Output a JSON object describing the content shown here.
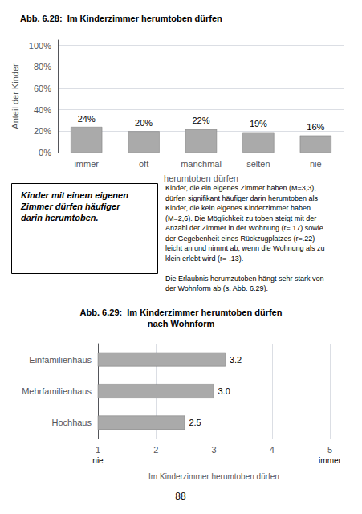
{
  "chart_data": [
    {
      "type": "bar",
      "title": "Abb. 6.28:  Im Kinderzimmer herumtoben dürfen",
      "categories": [
        "immer",
        "oft",
        "manchmal",
        "selten",
        "nie"
      ],
      "values": [
        24,
        20,
        22,
        19,
        16
      ],
      "value_labels": [
        "24%",
        "20%",
        "22%",
        "19%",
        "16%"
      ],
      "data_labels": true,
      "xlabel": "herumtoben dürfen",
      "ylabel": "Anteil der Kinder",
      "ylim": [
        0,
        105
      ],
      "yticks": [
        {
          "value": 0,
          "label": "0%"
        },
        {
          "value": 20,
          "label": "20%"
        },
        {
          "value": 40,
          "label": "40%"
        },
        {
          "value": 60,
          "label": "60%"
        },
        {
          "value": 80,
          "label": "80%"
        },
        {
          "value": 100,
          "label": "100%"
        }
      ],
      "color": "#aaaaaa",
      "grid": true,
      "annotations": [
        {
          "text": "Kinder mit einem eigenen\nZimmer dürfen häufiger\ndarin herumtoben."
        },
        {
          "text": "Kinder, die ein eigenes Zimmer haben (M=3,3),\ndürfen signifikant häufiger darin herumtoben als\nKinder, die kein eigenes Kinderzimmer haben\n(M=2,6). Die Möglichkeit zu toben steigt mit der\nAnzahl der Zimmer in der Wohnung (r=.17) sowie\nder Gegebenheit eines Rückzugplatzes (r=.22)\nleicht an und nimmt ab, wenn die Wohnung als zu\nklein erlebt wird (r=-.13).\n\nDie Erlaubnis herumzutoben hängt sehr stark von\nder Wohnform ab (s. Abb. 6.29)."
        }
      ]
    },
    {
      "type": "bar",
      "orientation": "horizontal",
      "title": "Abb. 6.29:  Im Kinderzimmer herumtoben dürfen",
      "subtitle": "nach Wohnform",
      "categories": [
        "Einfamilienhaus",
        "Mehrfamilienhaus",
        "Hochhaus"
      ],
      "values": [
        3.2,
        3.0,
        2.5
      ],
      "value_labels": [
        "3.2",
        "3.0",
        "2.5"
      ],
      "data_labels": true,
      "xlabel": "Im Kinderzimmer herumtoben dürfen",
      "xlim": [
        1,
        5
      ],
      "xticks": [
        1,
        2,
        3,
        4,
        5
      ],
      "color": "#aaaaaa",
      "grid": true,
      "annotations": [
        {
          "text": "nie",
          "x": 1
        },
        {
          "text": "immer",
          "x": 5
        },
        {
          "text": "88"
        }
      ]
    }
  ]
}
